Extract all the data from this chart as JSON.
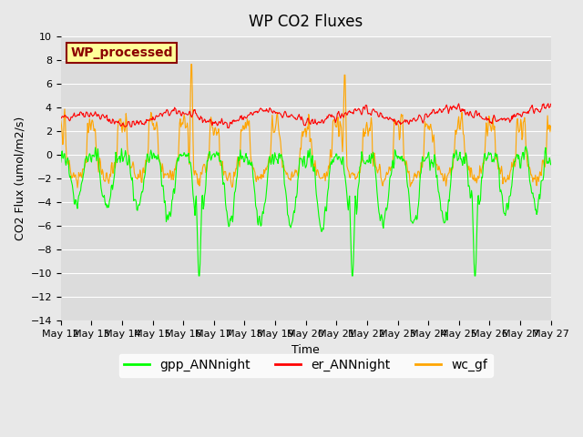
{
  "title": "WP CO2 Fluxes",
  "xlabel": "Time",
  "ylabel": "CO2 Flux (umol/m2/s)",
  "ylim": [
    -14,
    10
  ],
  "x_tick_labels": [
    "May 12",
    "May 13",
    "May 14",
    "May 15",
    "May 16",
    "May 17",
    "May 18",
    "May 19",
    "May 20",
    "May 21",
    "May 22",
    "May 23",
    "May 24",
    "May 25",
    "May 26",
    "May 27",
    "May 27"
  ],
  "annotation_text": "WP_processed",
  "annotation_facecolor": "#FFFF99",
  "annotation_edgecolor": "#8B0000",
  "annotation_textcolor": "#8B0000",
  "gpp_color": "#00FF00",
  "er_color": "#FF0000",
  "wc_color": "#FFA500",
  "linewidth": 0.8,
  "bg_color": "#E8E8E8",
  "plot_bg_color": "#DCDCDC",
  "legend_labels": [
    "gpp_ANNnight",
    "er_ANNnight",
    "wc_gf"
  ],
  "title_fontsize": 12,
  "legend_fontsize": 10
}
